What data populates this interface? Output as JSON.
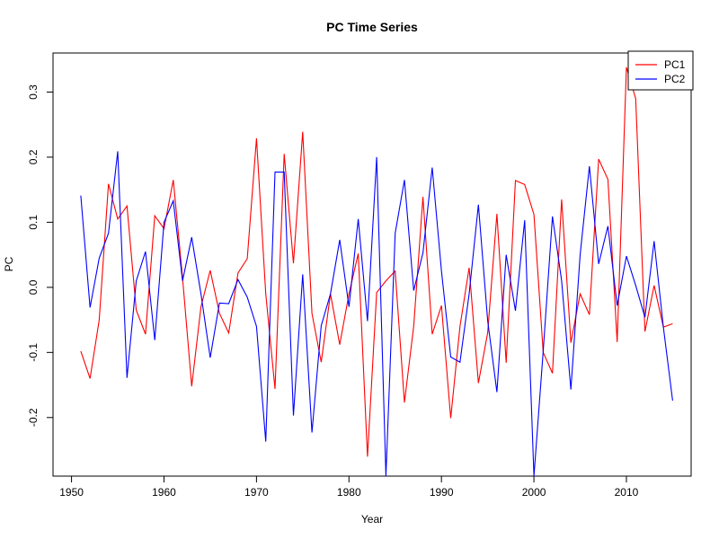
{
  "chart_data": {
    "type": "line",
    "title": "PC Time Series",
    "xlabel": "Year",
    "ylabel": "PC",
    "xlim": [
      1948,
      2017
    ],
    "ylim": [
      -0.29,
      0.36
    ],
    "xticks": [
      1950,
      1960,
      1970,
      1980,
      1990,
      2000,
      2010
    ],
    "yticks": [
      -0.2,
      -0.1,
      0.0,
      0.1,
      0.2,
      0.3
    ],
    "ytick_labels": [
      "-0.2",
      "-0.1",
      "0.0",
      "0.1",
      "0.2",
      "0.3"
    ],
    "legend_position": "top-right",
    "grid": false,
    "x": [
      1951,
      1952,
      1953,
      1954,
      1955,
      1956,
      1957,
      1958,
      1959,
      1960,
      1961,
      1962,
      1963,
      1964,
      1965,
      1966,
      1967,
      1968,
      1969,
      1970,
      1971,
      1972,
      1973,
      1974,
      1975,
      1976,
      1977,
      1978,
      1979,
      1980,
      1981,
      1982,
      1983,
      1984,
      1985,
      1986,
      1987,
      1988,
      1989,
      1990,
      1991,
      1992,
      1993,
      1994,
      1995,
      1996,
      1997,
      1998,
      1999,
      2000,
      2001,
      2002,
      2003,
      2004,
      2005,
      2006,
      2007,
      2008,
      2009,
      2010,
      2011,
      2012,
      2013,
      2014,
      2015
    ],
    "series": [
      {
        "name": "PC1",
        "color": "#ff0000",
        "values": [
          -0.098,
          -0.14,
          -0.05,
          0.159,
          0.105,
          0.125,
          -0.035,
          -0.072,
          0.11,
          0.09,
          0.165,
          0.015,
          -0.152,
          -0.03,
          0.026,
          -0.04,
          -0.07,
          0.022,
          0.044,
          0.229,
          -0.01,
          -0.156,
          0.205,
          0.037,
          0.239,
          -0.04,
          -0.115,
          -0.01,
          -0.088,
          -0.01,
          0.052,
          -0.26,
          -0.008,
          0.01,
          0.025,
          -0.177,
          -0.06,
          0.139,
          -0.072,
          -0.028,
          -0.201,
          -0.06,
          0.03,
          -0.147,
          -0.07,
          0.113,
          -0.116,
          0.164,
          0.158,
          0.112,
          -0.1,
          -0.132,
          0.135,
          -0.085,
          -0.01,
          -0.042,
          0.197,
          0.166,
          -0.084,
          0.338,
          0.29,
          -0.068,
          0.003,
          -0.061,
          -0.056
        ]
      },
      {
        "name": "PC2",
        "color": "#0000ff",
        "values": [
          0.141,
          -0.031,
          0.045,
          0.083,
          0.209,
          -0.139,
          0.01,
          0.055,
          -0.081,
          0.1,
          0.133,
          0.01,
          0.077,
          -0.01,
          -0.108,
          -0.024,
          -0.025,
          0.012,
          -0.015,
          -0.06,
          -0.237,
          0.177,
          0.177,
          -0.197,
          0.02,
          -0.223,
          -0.059,
          -0.01,
          0.073,
          -0.03,
          0.105,
          -0.052,
          0.2,
          -0.29,
          0.083,
          0.165,
          -0.005,
          0.053,
          0.184,
          0.025,
          -0.107,
          -0.115,
          -0.01,
          0.127,
          -0.051,
          -0.161,
          0.05,
          -0.036,
          0.103,
          -0.29,
          -0.098,
          0.109,
          0.01,
          -0.157,
          0.05,
          0.186,
          0.036,
          0.094,
          -0.028,
          0.048,
          0.003,
          -0.046,
          0.071,
          -0.061,
          -0.174
        ]
      }
    ]
  }
}
